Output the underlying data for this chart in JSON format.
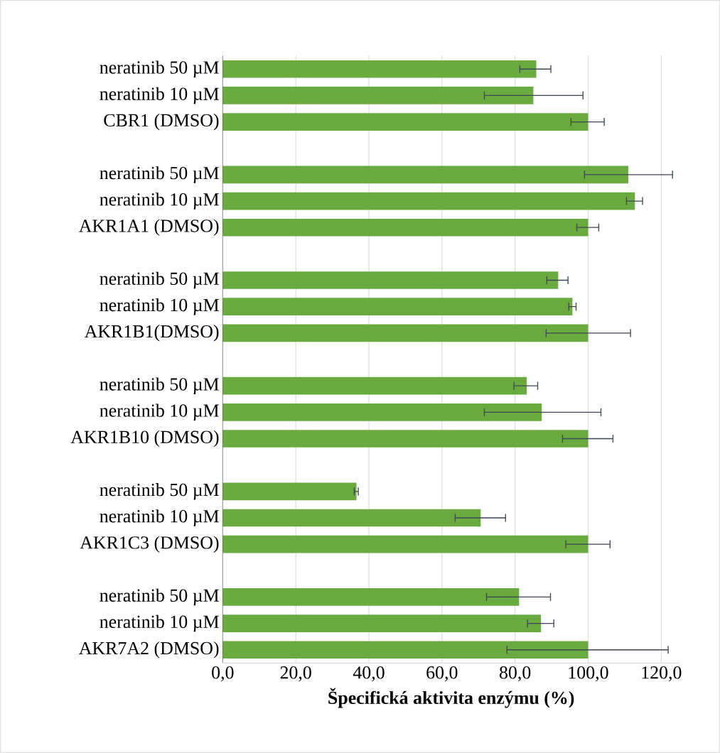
{
  "chart_data": {
    "type": "bar",
    "orientation": "horizontal",
    "xlabel": "**Špecifická aktivita enzýmu (%)**",
    "categories": [
      "neratinib 50 µM",
      "neratinib 10 µM",
      "CBR1 (DMSO)",
      null,
      "neratinib 50 µM",
      "neratinib 10 µM",
      "AKR1A1 (DMSO)",
      null,
      "neratinib 50 µM",
      "neratinib 10 µM",
      "AKR1B1(DMSO)",
      null,
      "neratinib 50 µM",
      "neratinib 10 µM",
      "AKR1B10 (DMSO)",
      null,
      "neratinib 50 µM",
      "neratinib 10 µM",
      "AKR1C3 (DMSO)",
      null,
      "neratinib 50 µM",
      "neratinib 10 µM",
      "AKR7A2 (DMSO)"
    ],
    "values": [
      85.8,
      85.0,
      100,
      null,
      111.0,
      112.8,
      100,
      null,
      91.8,
      95.7,
      100,
      null,
      83.2,
      87.3,
      100,
      null,
      36.6,
      70.6,
      100,
      null,
      81.1,
      87.1,
      100
    ],
    "errors": [
      [
        81.3,
        89.8
      ],
      [
        71.6,
        98.6
      ],
      [
        95.3,
        104.4
      ],
      null,
      [
        99.0,
        123.1
      ],
      [
        110.5,
        114.9
      ],
      [
        96.9,
        102.9
      ],
      null,
      [
        88.7,
        94.5
      ],
      [
        94.7,
        96.7
      ],
      [
        88.5,
        111.6
      ],
      null,
      [
        79.7,
        86.2
      ],
      [
        71.6,
        103.5
      ],
      [
        93.0,
        106.8
      ],
      null,
      [
        36.0,
        37.1
      ],
      [
        63.6,
        77.4
      ],
      [
        93.9,
        106.0
      ],
      null,
      [
        72.2,
        89.7
      ],
      [
        83.4,
        90.6
      ],
      [
        77.8,
        121.9
      ]
    ],
    "color": "#6aab40",
    "xlim": [
      0,
      125
    ],
    "xticks": [
      {
        "value": 0,
        "label": "0,0"
      },
      {
        "value": 20,
        "label": "20,0"
      },
      {
        "value": 40,
        "label": "40,0"
      },
      {
        "value": 60,
        "label": "60,0"
      },
      {
        "value": 80,
        "label": "80,0"
      },
      {
        "value": 100,
        "label": "100,0"
      },
      {
        "value": 120,
        "label": "120,0"
      }
    ],
    "grid": "x"
  }
}
